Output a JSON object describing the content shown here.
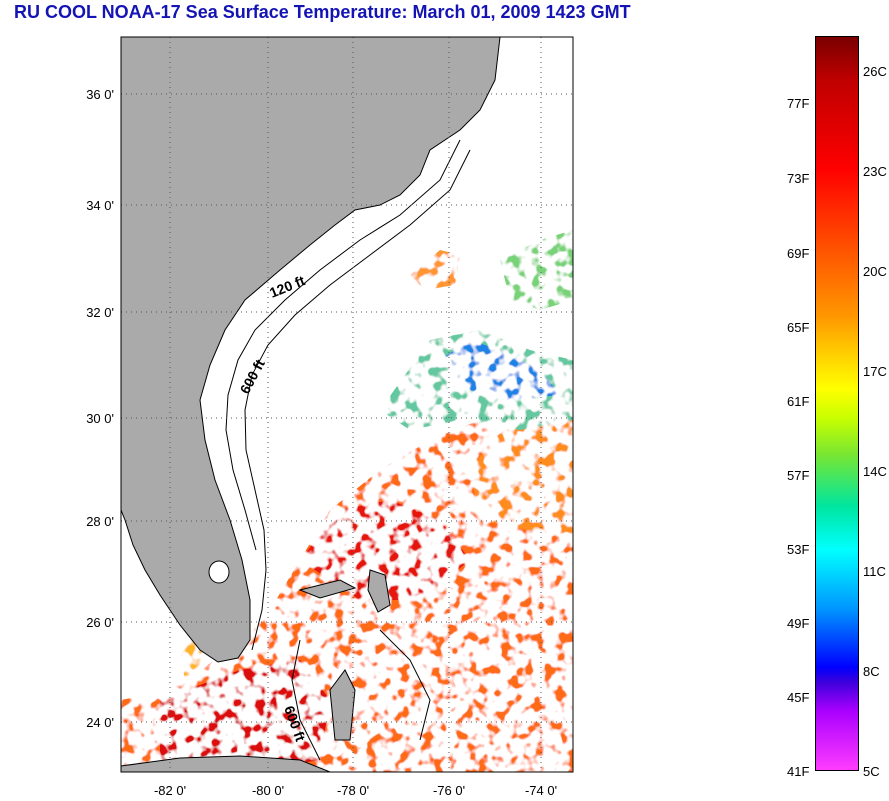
{
  "title": "RU COOL  NOAA-17  Sea Surface Temperature:  March 01, 2009 1423 GMT",
  "map": {
    "lat_ticks": [
      "36 0'",
      "34 0'",
      "32 0'",
      "30 0'",
      "28 0'",
      "26 0'",
      "24 0'"
    ],
    "lon_ticks": [
      "-82 0'",
      "-80 0'",
      "-78 0'",
      "-76 0'",
      "-74 0'"
    ],
    "contours": [
      "120 ft",
      "600 ft",
      "600 ft"
    ],
    "colors": {
      "land": "#aaaaaa",
      "cloud": "#ffffff",
      "contour": "#000000"
    }
  },
  "colorbar": {
    "fahrenheit": [
      "77F",
      "73F",
      "69F",
      "65F",
      "61F",
      "57F",
      "53F",
      "49F",
      "45F",
      "41F"
    ],
    "celsius": [
      "26C",
      "23C",
      "20C",
      "17C",
      "14C",
      "11C",
      "8C",
      "5C"
    ]
  }
}
